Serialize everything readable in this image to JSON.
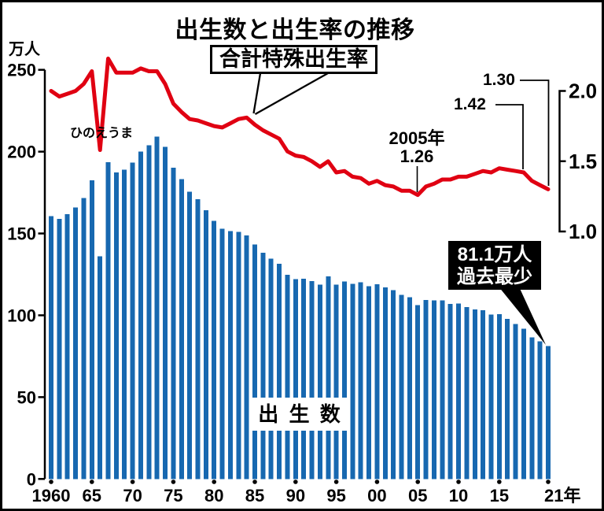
{
  "title": "出生数と出生率の推移",
  "colors": {
    "bar_blue": "#1768b0",
    "line_red": "#e00012",
    "text_black": "#000000",
    "callout_bg": "#000000",
    "callout_fg": "#ffffff",
    "background": "#ffffff"
  },
  "y_left": {
    "unit": "万人",
    "ticks": [
      0,
      50,
      100,
      150,
      200,
      250
    ]
  },
  "y_right": {
    "ticks": [
      "1.0",
      "1.5",
      "2.0"
    ]
  },
  "x_axis": {
    "ticks": [
      {
        "label": "1960",
        "year": 1960
      },
      {
        "label": "65",
        "year": 1965
      },
      {
        "label": "70",
        "year": 1970
      },
      {
        "label": "75",
        "year": 1975
      },
      {
        "label": "80",
        "year": 1980
      },
      {
        "label": "85",
        "year": 1985
      },
      {
        "label": "90",
        "year": 1990
      },
      {
        "label": "95",
        "year": 1995
      },
      {
        "label": "00",
        "year": 2000
      },
      {
        "label": "05",
        "year": 2005
      },
      {
        "label": "10",
        "year": 2010
      },
      {
        "label": "15",
        "year": 2015
      },
      {
        "label": "21年",
        "year": 2021
      }
    ]
  },
  "annotations": {
    "tfr_box": "合計特殊出生率",
    "hinoeuma": "ひのえうま",
    "min_year": "2005年",
    "min_value": "1.26",
    "rate_2018": "1.42",
    "rate_2021": "1.30",
    "record_low_line1": "81.1万人",
    "record_low_line2": "過去最少",
    "births_label": "出 生 数"
  },
  "chart_data": {
    "type": "bar+line",
    "title": "出生数と出生率の推移",
    "x": [
      1960,
      1961,
      1962,
      1963,
      1964,
      1965,
      1966,
      1967,
      1968,
      1969,
      1970,
      1971,
      1972,
      1973,
      1974,
      1975,
      1976,
      1977,
      1978,
      1979,
      1980,
      1981,
      1982,
      1983,
      1984,
      1985,
      1986,
      1987,
      1988,
      1989,
      1990,
      1991,
      1992,
      1993,
      1994,
      1995,
      1996,
      1997,
      1998,
      1999,
      2000,
      2001,
      2002,
      2003,
      2004,
      2005,
      2006,
      2007,
      2008,
      2009,
      2010,
      2011,
      2012,
      2013,
      2014,
      2015,
      2016,
      2017,
      2018,
      2019,
      2020,
      2021
    ],
    "series": [
      {
        "name": "出生数",
        "type": "bar",
        "axis": "left",
        "unit": "万人",
        "values": [
          160.6,
          158.9,
          161.9,
          165.9,
          171.7,
          182.4,
          136.1,
          193.6,
          187.2,
          188.9,
          193.4,
          200.1,
          203.9,
          209.2,
          203.0,
          190.1,
          183.3,
          175.5,
          170.9,
          164.3,
          157.7,
          152.9,
          151.5,
          150.9,
          148.9,
          143.2,
          138.3,
          134.7,
          131.4,
          124.7,
          122.2,
          122.3,
          120.9,
          118.8,
          123.8,
          118.7,
          120.7,
          119.2,
          120.3,
          117.8,
          119.1,
          117.1,
          115.4,
          112.4,
          111.1,
          106.3,
          109.3,
          109.0,
          109.1,
          107.0,
          107.1,
          105.1,
          103.7,
          103.0,
          100.4,
          100.6,
          97.7,
          94.6,
          91.8,
          86.5,
          84.1,
          81.1
        ]
      },
      {
        "name": "合計特殊出生率",
        "type": "line",
        "axis": "right",
        "values": [
          2.0,
          1.96,
          1.98,
          2.0,
          2.05,
          2.14,
          1.58,
          2.23,
          2.13,
          2.13,
          2.13,
          2.16,
          2.14,
          2.14,
          2.05,
          1.91,
          1.85,
          1.8,
          1.79,
          1.77,
          1.75,
          1.74,
          1.77,
          1.8,
          1.81,
          1.76,
          1.72,
          1.69,
          1.66,
          1.57,
          1.54,
          1.53,
          1.5,
          1.46,
          1.5,
          1.42,
          1.43,
          1.39,
          1.38,
          1.34,
          1.36,
          1.33,
          1.32,
          1.29,
          1.29,
          1.26,
          1.32,
          1.34,
          1.37,
          1.37,
          1.39,
          1.39,
          1.41,
          1.43,
          1.42,
          1.45,
          1.44,
          1.43,
          1.42,
          1.36,
          1.33,
          1.3
        ]
      }
    ],
    "left_ylim": [
      0,
      250
    ],
    "right_axis_ticks": [
      1.0,
      1.5,
      2.0
    ],
    "grid": false,
    "legend_position": "callout-labels-on-chart"
  }
}
